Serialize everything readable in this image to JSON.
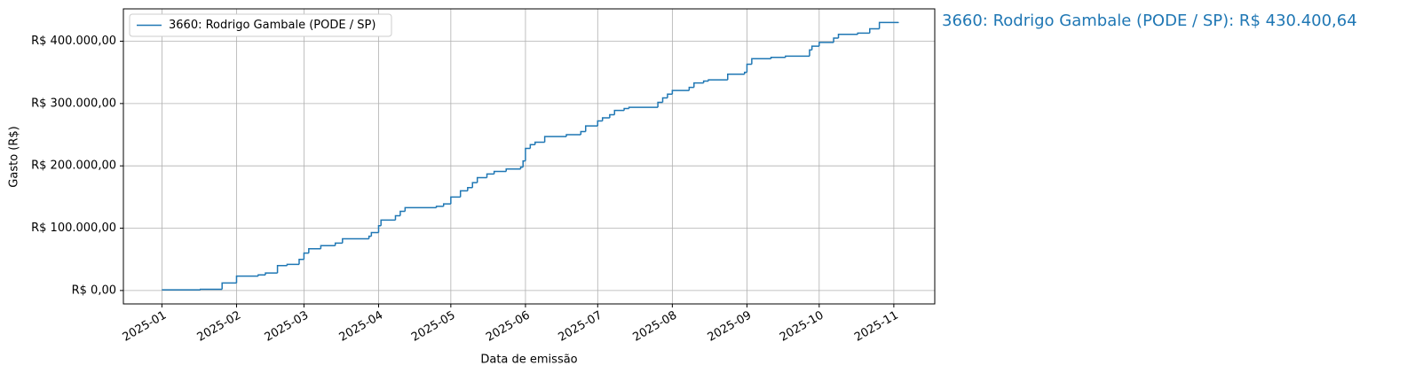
{
  "chart_data": {
    "type": "step",
    "x_label": "Data de emissão",
    "y_label": "Gasto (R$)",
    "annotation": "3660: Rodrigo Gambale (PODE / SP): R$ 430.400,64",
    "legend": "upper left",
    "grid": true,
    "xlim": [
      "2024-12-16",
      "2025-11-18"
    ],
    "ylim": [
      -21520,
      451920
    ],
    "xticks": [
      {
        "value": "2025-01-01",
        "label": "2025-01"
      },
      {
        "value": "2025-02-01",
        "label": "2025-02"
      },
      {
        "value": "2025-03-01",
        "label": "2025-03"
      },
      {
        "value": "2025-04-01",
        "label": "2025-04"
      },
      {
        "value": "2025-05-01",
        "label": "2025-05"
      },
      {
        "value": "2025-06-01",
        "label": "2025-06"
      },
      {
        "value": "2025-07-01",
        "label": "2025-07"
      },
      {
        "value": "2025-08-01",
        "label": "2025-08"
      },
      {
        "value": "2025-09-01",
        "label": "2025-09"
      },
      {
        "value": "2025-10-01",
        "label": "2025-10"
      },
      {
        "value": "2025-11-01",
        "label": "2025-11"
      }
    ],
    "yticks": [
      {
        "value": 0,
        "label": "R$ 0,00"
      },
      {
        "value": 100000,
        "label": "R$ 100.000,00"
      },
      {
        "value": 200000,
        "label": "R$ 200.000,00"
      },
      {
        "value": 300000,
        "label": "R$ 300.000,00"
      },
      {
        "value": 400000,
        "label": "R$ 400.000,00"
      }
    ],
    "x": [
      "2025-01-01",
      "2025-01-17",
      "2025-01-26",
      "2025-02-01",
      "2025-02-10",
      "2025-02-13",
      "2025-02-18",
      "2025-02-22",
      "2025-02-27",
      "2025-03-01",
      "2025-03-03",
      "2025-03-08",
      "2025-03-14",
      "2025-03-17",
      "2025-03-28",
      "2025-03-29",
      "2025-04-01",
      "2025-04-02",
      "2025-04-08",
      "2025-04-10",
      "2025-04-12",
      "2025-04-25",
      "2025-04-28",
      "2025-05-01",
      "2025-05-05",
      "2025-05-08",
      "2025-05-10",
      "2025-05-12",
      "2025-05-16",
      "2025-05-19",
      "2025-05-24",
      "2025-05-30",
      "2025-05-31",
      "2025-06-01",
      "2025-06-03",
      "2025-06-05",
      "2025-06-09",
      "2025-06-18",
      "2025-06-24",
      "2025-06-26",
      "2025-07-01",
      "2025-07-03",
      "2025-07-06",
      "2025-07-08",
      "2025-07-12",
      "2025-07-14",
      "2025-07-26",
      "2025-07-28",
      "2025-07-30",
      "2025-08-01",
      "2025-08-08",
      "2025-08-10",
      "2025-08-14",
      "2025-08-16",
      "2025-08-24",
      "2025-08-31",
      "2025-09-01",
      "2025-09-03",
      "2025-09-11",
      "2025-09-17",
      "2025-09-27",
      "2025-09-28",
      "2025-10-01",
      "2025-10-07",
      "2025-10-09",
      "2025-10-17",
      "2025-10-22",
      "2025-10-26",
      "2025-11-03"
    ],
    "series": [
      {
        "name": "3660: Rodrigo Gambale (PODE / SP)",
        "color": "#1f77b4",
        "values": [
          1000,
          2000,
          12000,
          23000,
          25000,
          28000,
          40000,
          42000,
          50000,
          60000,
          67000,
          72000,
          76000,
          83000,
          87000,
          93000,
          104000,
          113000,
          120000,
          127000,
          133000,
          135000,
          139000,
          150000,
          160000,
          165000,
          173000,
          181000,
          187000,
          191000,
          195000,
          198000,
          208000,
          228000,
          234000,
          238000,
          247000,
          250000,
          255000,
          264000,
          272000,
          277000,
          282000,
          289000,
          292000,
          294000,
          302000,
          309000,
          315000,
          321000,
          326000,
          333000,
          336000,
          338000,
          347000,
          350000,
          363000,
          372000,
          374000,
          376000,
          386000,
          392000,
          398000,
          405000,
          411000,
          413000,
          420000,
          430000,
          430400.64
        ]
      }
    ]
  }
}
